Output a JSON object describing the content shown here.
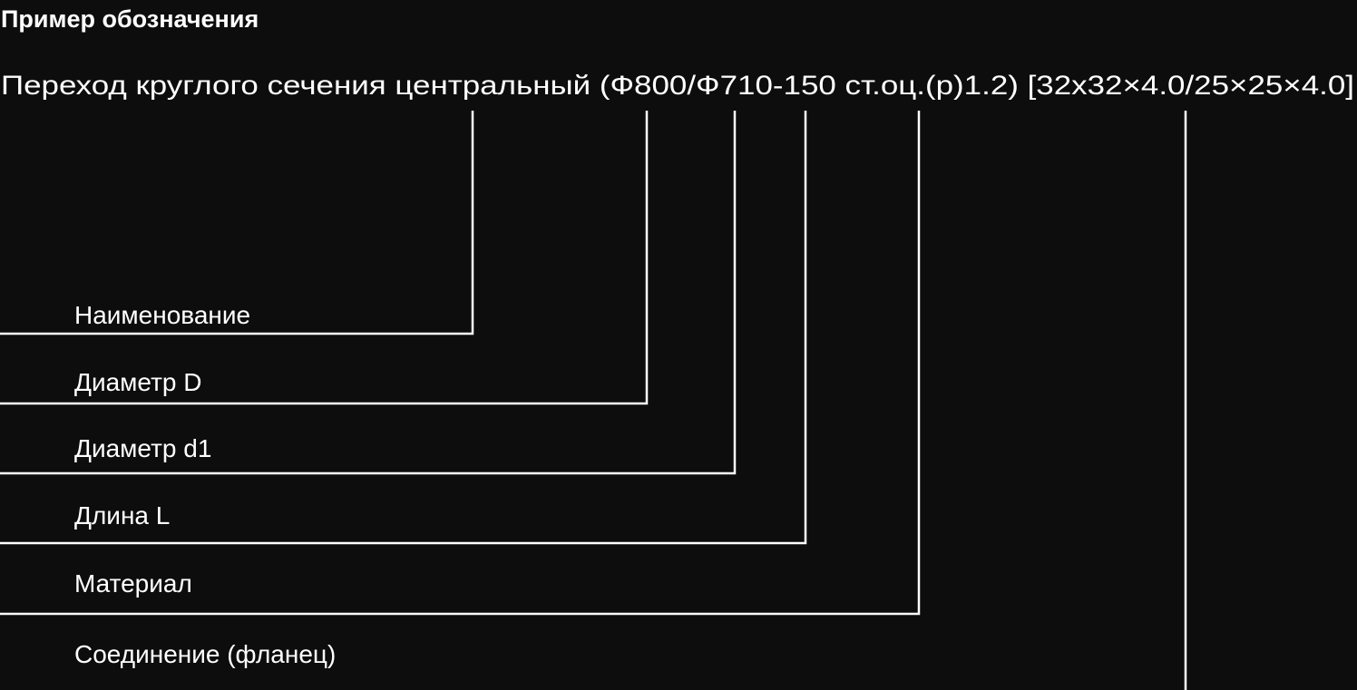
{
  "title": "Пример обозначения",
  "designation": "Переход круглого сечения центральный (Ф800/Ф710-150 ст.оц.(р)1.2) [32х32×4.0/25×25×4.0]",
  "labels": [
    "Наименование",
    "Диаметр D",
    "Диаметр d1",
    "Длина L",
    "Материал",
    "Соединение (фланец)"
  ],
  "colors": {
    "background": "#0d0d0d",
    "foreground": "#ffffff"
  }
}
